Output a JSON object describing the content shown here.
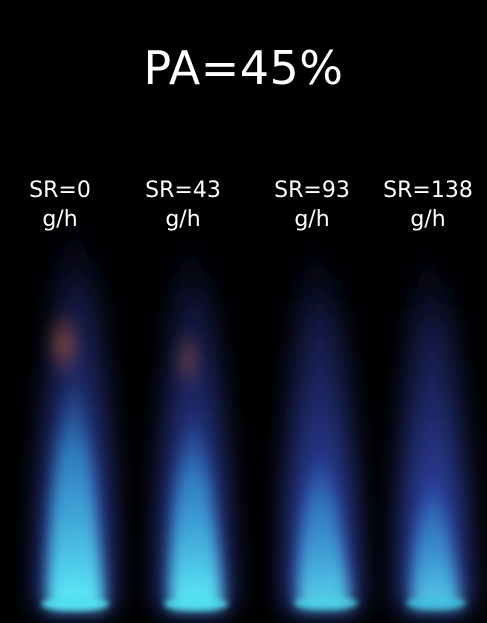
{
  "title": "PA=45%",
  "flames": [
    {
      "sr_label": "SR=0",
      "unit": "g/h"
    },
    {
      "sr_label": "SR=43",
      "unit": "g/h"
    },
    {
      "sr_label": "SR=93",
      "unit": "g/h"
    },
    {
      "sr_label": "SR=138",
      "unit": "g/h"
    }
  ],
  "colors": {
    "background": "#000000",
    "text": "#ffffff",
    "flame_outer": "#3a50c8",
    "flame_core": "#4fe0f0",
    "flame_tip": "#c0603a"
  }
}
